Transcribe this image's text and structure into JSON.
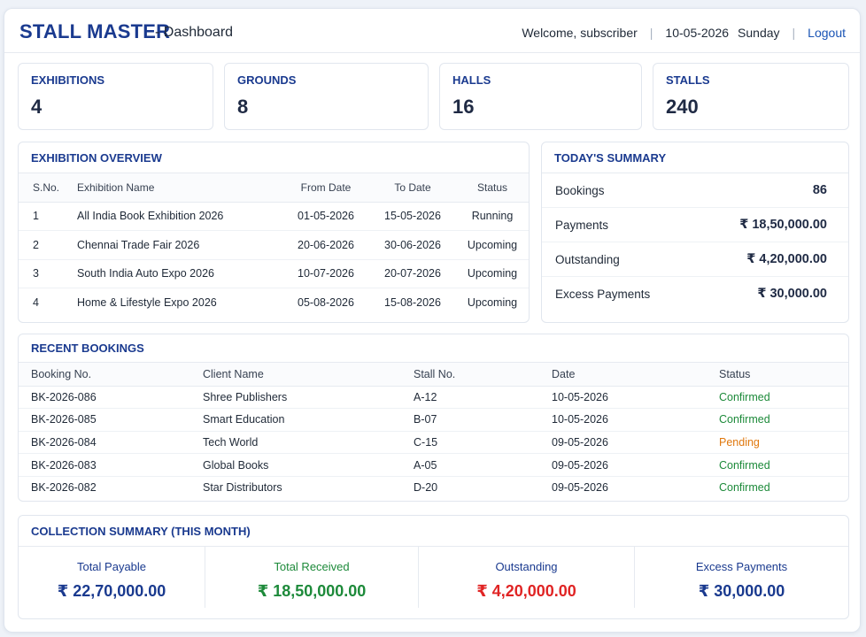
{
  "header": {
    "brand": "STALL MASTER",
    "subtitle": "- Dashboard",
    "welcome": "Welcome, subscriber",
    "date": "10-05-2026",
    "day": "Sunday",
    "logout": "Logout",
    "separator": "|"
  },
  "stats": [
    {
      "label": "EXHIBITIONS",
      "value": "4"
    },
    {
      "label": "GROUNDS",
      "value": "8"
    },
    {
      "label": "HALLS",
      "value": "16"
    },
    {
      "label": "STALLS",
      "value": "240"
    }
  ],
  "exhibition_overview": {
    "title": "EXHIBITION OVERVIEW",
    "columns": [
      "S.No.",
      "Exhibition Name",
      "From Date",
      "To Date",
      "Status"
    ],
    "rows": [
      {
        "sno": "1",
        "name": "All India Book Exhibition 2026",
        "from": "01-05-2026",
        "to": "15-05-2026",
        "status": "Running"
      },
      {
        "sno": "2",
        "name": "Chennai Trade Fair 2026",
        "from": "20-06-2026",
        "to": "30-06-2026",
        "status": "Upcoming"
      },
      {
        "sno": "3",
        "name": "South India Auto Expo 2026",
        "from": "10-07-2026",
        "to": "20-07-2026",
        "status": "Upcoming"
      },
      {
        "sno": "4",
        "name": "Home & Lifestyle Expo 2026",
        "from": "05-08-2026",
        "to": "15-08-2026",
        "status": "Upcoming"
      }
    ]
  },
  "todays_summary": {
    "title": "TODAY'S SUMMARY",
    "rows": [
      {
        "label": "Bookings",
        "value": "86"
      },
      {
        "label": "Payments",
        "value": "₹ 18,50,000.00"
      },
      {
        "label": "Outstanding",
        "value": "₹ 4,20,000.00"
      },
      {
        "label": "Excess Payments",
        "value": "₹ 30,000.00"
      }
    ]
  },
  "recent_bookings": {
    "title": "RECENT BOOKINGS",
    "columns": [
      "Booking No.",
      "Client Name",
      "Stall No.",
      "Date",
      "Status"
    ],
    "rows": [
      {
        "no": "BK-2026-086",
        "client": "Shree Publishers",
        "stall": "A-12",
        "date": "10-05-2026",
        "status": "Confirmed"
      },
      {
        "no": "BK-2026-085",
        "client": "Smart Education",
        "stall": "B-07",
        "date": "10-05-2026",
        "status": "Confirmed"
      },
      {
        "no": "BK-2026-084",
        "client": "Tech World",
        "stall": "C-15",
        "date": "09-05-2026",
        "status": "Pending"
      },
      {
        "no": "BK-2026-083",
        "client": "Global Books",
        "stall": "A-05",
        "date": "09-05-2026",
        "status": "Confirmed"
      },
      {
        "no": "BK-2026-082",
        "client": "Star Distributors",
        "stall": "D-20",
        "date": "09-05-2026",
        "status": "Confirmed"
      }
    ]
  },
  "collection_summary": {
    "title": "COLLECTION SUMMARY (THIS MONTH)",
    "items": [
      {
        "label": "Total Payable",
        "value": "₹ 22,70,000.00",
        "label_color": "#1a3a8f",
        "value_color": "#1a3a8f"
      },
      {
        "label": "Total Received",
        "value": "₹ 18,50,000.00",
        "label_color": "#1d8a3a",
        "value_color": "#1d8a3a"
      },
      {
        "label": "Outstanding",
        "value": "₹ 4,20,000.00",
        "label_color": "#1a3a8f",
        "value_color": "#e02424"
      },
      {
        "label": "Excess Payments",
        "value": "₹ 30,000.00",
        "label_color": "#1a3a8f",
        "value_color": "#1a3a8f"
      }
    ]
  },
  "colors": {
    "brand": "#1a3a8f",
    "running": "#1d8a3a",
    "upcoming": "#1a63c9",
    "confirmed": "#1d8a3a",
    "pending": "#e0780e"
  }
}
